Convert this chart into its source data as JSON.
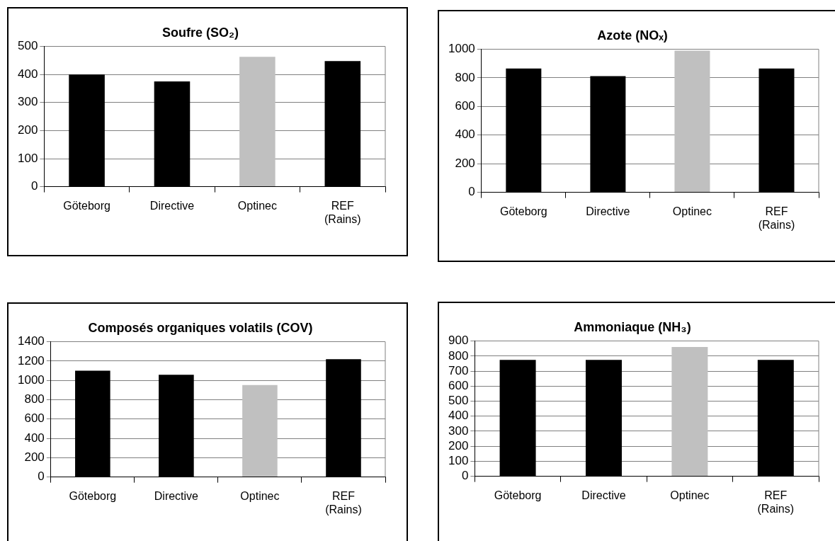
{
  "chart_data": [
    {
      "type": "bar",
      "title": "Soufre (SO₂)",
      "categories": [
        "Göteborg",
        "Directive",
        "Optinec",
        "REF (Rains)"
      ],
      "values": [
        400,
        375,
        463,
        448
      ],
      "colors": [
        "#000000",
        "#000000",
        "#c0c0c0",
        "#000000"
      ],
      "ylim": [
        0,
        500
      ],
      "yticks": [
        0,
        100,
        200,
        300,
        400,
        500
      ],
      "grid": "y"
    },
    {
      "type": "bar",
      "title": "Azote (NOₓ)",
      "categories": [
        "Göteborg",
        "Directive",
        "Optinec",
        "REF (Rains)"
      ],
      "values": [
        865,
        812,
        990,
        865
      ],
      "colors": [
        "#000000",
        "#000000",
        "#c0c0c0",
        "#000000"
      ],
      "ylim": [
        0,
        1000
      ],
      "yticks": [
        0,
        200,
        400,
        600,
        800,
        1000
      ],
      "grid": "y"
    },
    {
      "type": "bar",
      "title": "Composés organiques volatils (COV)",
      "categories": [
        "Göteborg",
        "Directive",
        "Optinec",
        "REF (Rains)"
      ],
      "values": [
        1100,
        1058,
        952,
        1220
      ],
      "colors": [
        "#000000",
        "#000000",
        "#c0c0c0",
        "#000000"
      ],
      "ylim": [
        0,
        1400
      ],
      "yticks": [
        0,
        200,
        400,
        600,
        800,
        1000,
        1200,
        1400
      ],
      "grid": "y"
    },
    {
      "type": "bar",
      "title": "Ammoniaque (NH₃)",
      "categories": [
        "Göteborg",
        "Directive",
        "Optinec",
        "REF (Rains)"
      ],
      "values": [
        775,
        775,
        860,
        775
      ],
      "colors": [
        "#000000",
        "#000000",
        "#c0c0c0",
        "#000000"
      ],
      "ylim": [
        0,
        900
      ],
      "yticks": [
        0,
        100,
        200,
        300,
        400,
        500,
        600,
        700,
        800,
        900
      ],
      "grid": "y"
    }
  ]
}
